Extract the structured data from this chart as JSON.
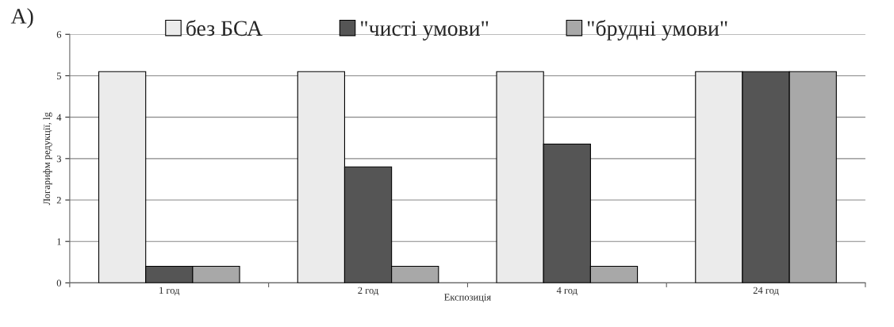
{
  "chart_data": {
    "type": "bar",
    "categories": [
      "1 год",
      "2 год",
      "4 год",
      "24 год"
    ],
    "xlabel": "Експозиція",
    "ylabel": "Логарифм редукції, lg",
    "ylim": [
      0,
      6
    ],
    "yticks": [
      0,
      1,
      2,
      3,
      4,
      5,
      6
    ],
    "grid": "y",
    "legend": "top",
    "annotations": [
      "A)"
    ],
    "series": [
      {
        "name": "без БСА",
        "color": "#ebebeb",
        "values": [
          5.1,
          5.1,
          5.1,
          5.1
        ]
      },
      {
        "name": "\"чисті умови\"",
        "color": "#555555",
        "values": [
          0.4,
          2.8,
          3.35,
          5.1
        ]
      },
      {
        "name": "\"брудні умови\"",
        "color": "#a8a8a8",
        "values": [
          0.4,
          0.4,
          0.4,
          5.1
        ]
      }
    ]
  }
}
